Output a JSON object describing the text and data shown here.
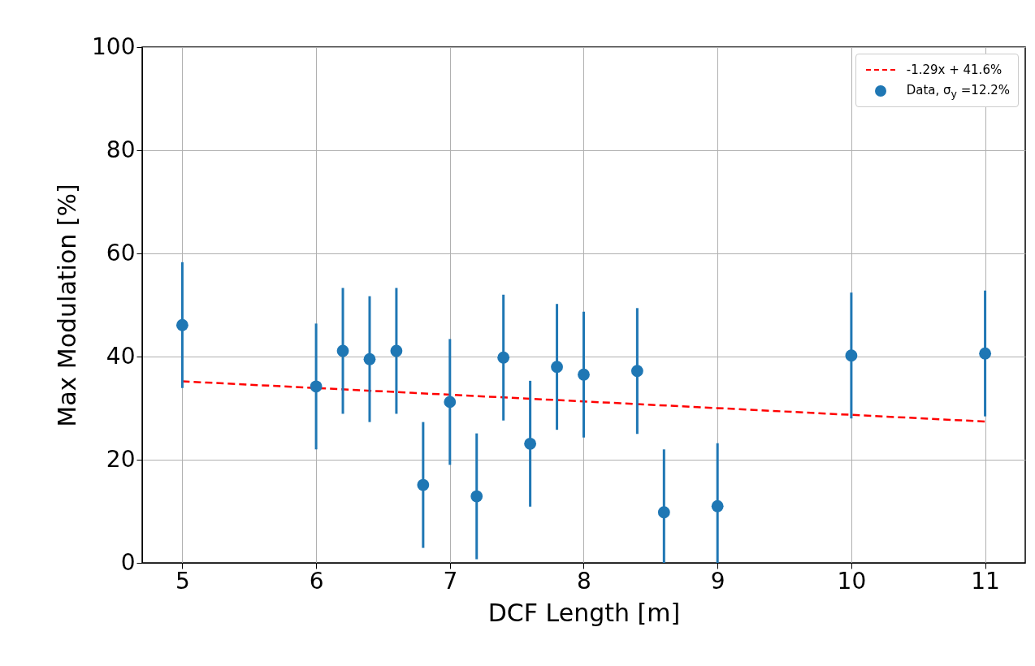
{
  "chart_data": {
    "type": "scatter",
    "xlabel": "DCF Length [m]",
    "ylabel": "Max Modulation [%]",
    "xlim": [
      4.7,
      11.3
    ],
    "ylim": [
      0,
      100
    ],
    "xticks": [
      5,
      6,
      7,
      8,
      9,
      10,
      11
    ],
    "yticks": [
      0,
      20,
      40,
      60,
      80,
      100
    ],
    "grid": true,
    "legend": "top right",
    "marker": "circle",
    "series": [
      {
        "name": "-1.29x + 41.6%",
        "type": "line",
        "color": "#ff0000",
        "line_style": "dashed",
        "marker": "none",
        "x": [
          5,
          11
        ],
        "values": [
          35.2,
          27.4
        ]
      },
      {
        "name": "Data, σ$_{y}$ =12.2%",
        "type": "scatter",
        "color": "#1f77b4",
        "x": [
          5,
          6,
          6.2,
          6.4,
          6.6,
          6.8,
          7,
          7.2,
          7.4,
          7.6,
          7.8,
          8,
          8.4,
          8.6,
          9,
          10,
          11
        ],
        "values": [
          46.1,
          34.2,
          41.1,
          39.5,
          41.1,
          15.1,
          31.2,
          12.9,
          39.8,
          23.1,
          38.0,
          36.5,
          37.2,
          9.8,
          11.0,
          40.2,
          40.6
        ],
        "errors": [
          12.2,
          12.2,
          12.2,
          12.2,
          12.2,
          12.2,
          12.2,
          12.2,
          12.2,
          12.2,
          12.2,
          12.2,
          12.2,
          [
            0,
            22.0
          ],
          [
            0,
            23.2
          ],
          12.2,
          12.2
        ]
      }
    ]
  }
}
